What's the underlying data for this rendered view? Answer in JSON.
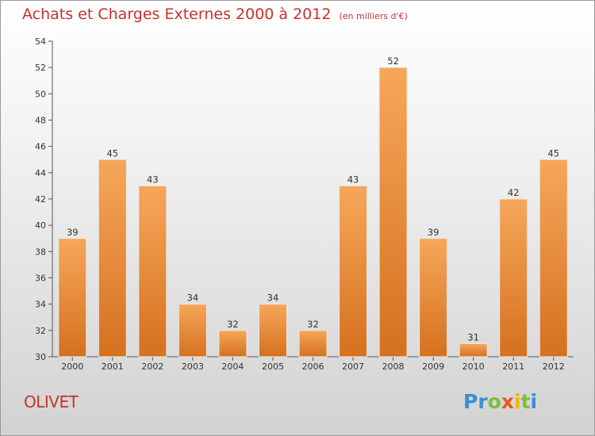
{
  "title": "Achats et Charges Externes 2000 à 2012",
  "unit": "(en milliers d'€)",
  "city": "OLIVET",
  "logo": {
    "letters": [
      {
        "char": "P",
        "color": "#3a8fd6"
      },
      {
        "char": "r",
        "color": "#3a8fd6"
      },
      {
        "char": "o",
        "color": "#7bbf3a"
      },
      {
        "char": "x",
        "color": "#e85a1e"
      },
      {
        "char": "i",
        "color": "#f0b400"
      },
      {
        "char": "t",
        "color": "#7bbf3a"
      },
      {
        "char": "i",
        "color": "#3a8fd6"
      }
    ]
  },
  "colors": {
    "bar_light": "#f6a75a",
    "bar_dark": "#d5711f",
    "title": "#c8322d"
  },
  "chart_data": {
    "type": "bar",
    "categories": [
      "2000",
      "2001",
      "2002",
      "2003",
      "2004",
      "2005",
      "2006",
      "2007",
      "2008",
      "2009",
      "2010",
      "2011",
      "2012"
    ],
    "values": [
      39,
      45,
      43,
      34,
      32,
      34,
      32,
      43,
      52,
      39,
      31,
      42,
      45
    ],
    "ylim": [
      30,
      54
    ],
    "yticks": [
      30,
      32,
      34,
      36,
      38,
      40,
      42,
      44,
      46,
      48,
      50,
      52,
      54
    ],
    "grid": false,
    "legend": "none"
  }
}
